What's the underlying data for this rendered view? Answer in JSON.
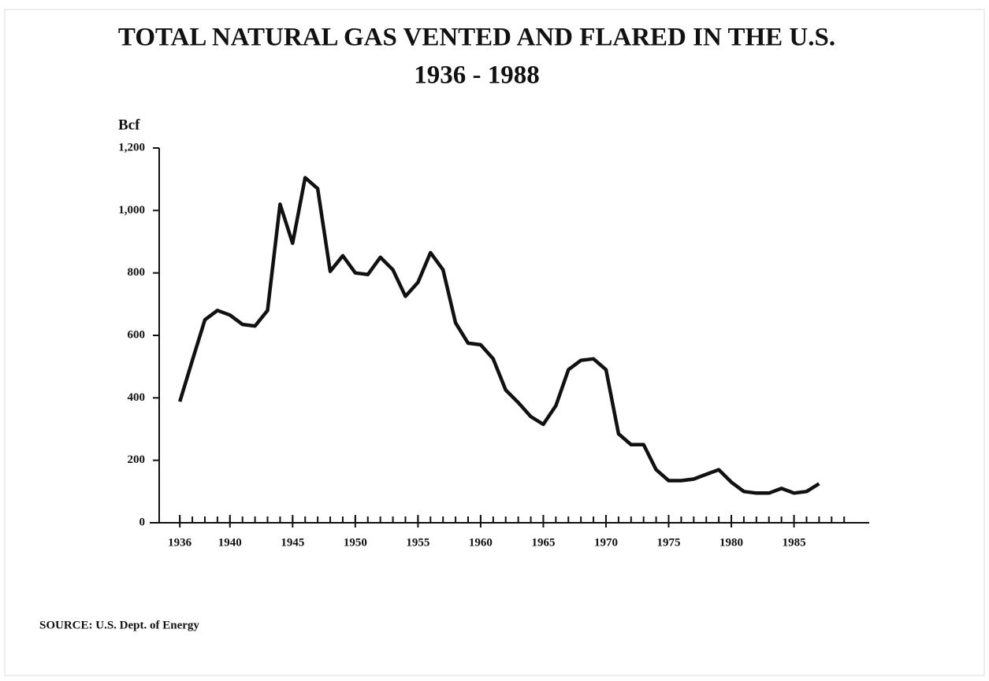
{
  "chart_data": {
    "type": "line",
    "title": "TOTAL NATURAL GAS VENTED AND FLARED IN THE U.S.",
    "subtitle": "1936 - 1988",
    "y_label": "Bcf",
    "source": "SOURCE:  U.S. Dept. of Energy",
    "x": [
      1936,
      1937,
      1938,
      1939,
      1940,
      1941,
      1942,
      1943,
      1944,
      1945,
      1946,
      1947,
      1948,
      1949,
      1950,
      1951,
      1952,
      1953,
      1954,
      1955,
      1956,
      1957,
      1958,
      1959,
      1960,
      1961,
      1962,
      1963,
      1964,
      1965,
      1966,
      1967,
      1968,
      1969,
      1970,
      1971,
      1972,
      1973,
      1974,
      1975,
      1976,
      1977,
      1978,
      1979,
      1980,
      1981,
      1982,
      1983,
      1984,
      1985,
      1986,
      1987
    ],
    "series": [
      {
        "color": "#111111",
        "values": [
          388,
          520,
          650,
          680,
          665,
          635,
          630,
          680,
          1020,
          895,
          1105,
          1070,
          805,
          855,
          800,
          795,
          850,
          810,
          725,
          770,
          865,
          810,
          640,
          575,
          570,
          525,
          425,
          385,
          340,
          315,
          375,
          490,
          520,
          525,
          490,
          285,
          250,
          250,
          170,
          135,
          135,
          140,
          155,
          170,
          130,
          100,
          95,
          95,
          110,
          95,
          100,
          125
        ]
      }
    ],
    "xlim": [
      1933.6,
      1991
    ],
    "xticks": [
      1936,
      1940,
      1945,
      1950,
      1955,
      1960,
      1965,
      1970,
      1975,
      1980,
      1985
    ],
    "xminor_ticks": [
      1936,
      1937,
      1938,
      1939,
      1940,
      1941,
      1942,
      1943,
      1944,
      1945,
      1946,
      1947,
      1948,
      1949,
      1950,
      1951,
      1952,
      1953,
      1954,
      1955,
      1956,
      1957,
      1958,
      1959,
      1960,
      1961,
      1962,
      1963,
      1964,
      1965,
      1966,
      1967,
      1968,
      1969,
      1970,
      1971,
      1972,
      1973,
      1974,
      1975,
      1976,
      1977,
      1978,
      1979,
      1980,
      1981,
      1982,
      1983,
      1984,
      1985,
      1986,
      1987,
      1988,
      1989
    ],
    "ylim": [
      0,
      1200
    ],
    "yticks": [
      0,
      200,
      400,
      600,
      800,
      {
        "value": 1000,
        "label": "1,000"
      },
      {
        "value": 1200,
        "label": "1,200"
      }
    ]
  }
}
